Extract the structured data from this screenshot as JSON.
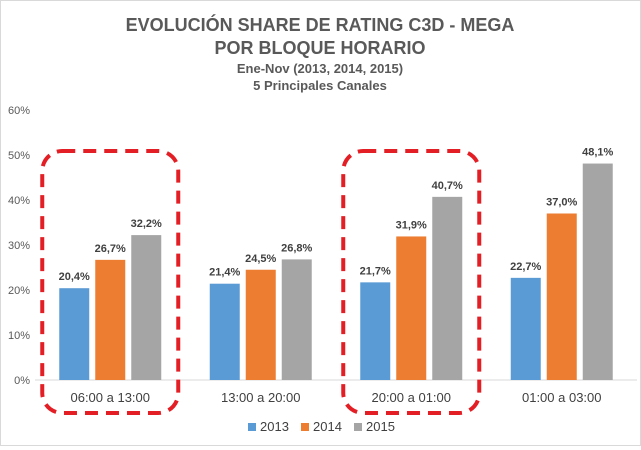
{
  "chart_data": {
    "type": "bar",
    "title": "EVOLUCIÓN SHARE DE RATING C3D - MEGA",
    "title_line2": "POR BLOQUE HORARIO",
    "subtitle": "Ene-Nov (2013, 2014, 2015)",
    "subtitle2": "5 Principales Canales",
    "categories": [
      "06:00 a 13:00",
      "13:00 a 20:00",
      "20:00 a 01:00",
      "01:00 a 03:00"
    ],
    "series": [
      {
        "name": "2013",
        "color": "#5b9bd5",
        "values": [
          20.4,
          21.4,
          21.7,
          22.7
        ],
        "labels": [
          "20,4%",
          "21,4%",
          "21,7%",
          "22,7%"
        ]
      },
      {
        "name": "2014",
        "color": "#ed7d31",
        "values": [
          26.7,
          24.5,
          31.9,
          37.0
        ],
        "labels": [
          "26,7%",
          "24,5%",
          "31,9%",
          "37,0%"
        ]
      },
      {
        "name": "2015",
        "color": "#a5a5a5",
        "values": [
          32.2,
          26.8,
          40.7,
          48.1
        ],
        "labels": [
          "32,2%",
          "26,8%",
          "40,7%",
          "48,1%"
        ]
      }
    ],
    "ylim": [
      0,
      60
    ],
    "yticks": [
      "0%",
      "10%",
      "20%",
      "30%",
      "40%",
      "50%",
      "60%"
    ],
    "grid": false,
    "legend": "bottom",
    "highlighted_categories": [
      "06:00 a 13:00",
      "20:00 a 01:00"
    ],
    "highlight_color": "#e31e24"
  }
}
